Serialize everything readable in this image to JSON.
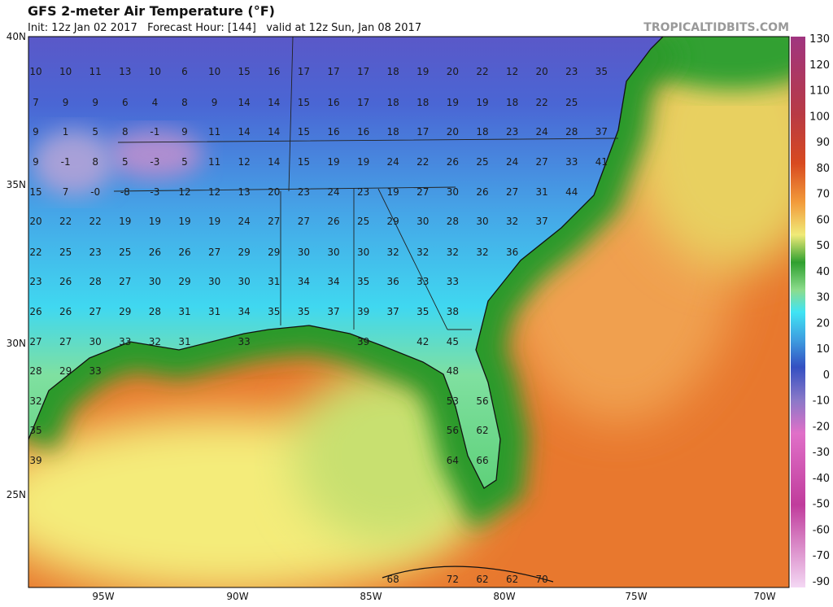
{
  "header": {
    "title": "GFS 2-meter Air Temperature (°F)",
    "subtitle": "Init: 12z Jan 02 2017   Forecast Hour: [144]   valid at 12z Sun, Jan 08 2017",
    "brand": "TROPICALTIDBITS.COM"
  },
  "latitudes": [
    "40N",
    "35N",
    "30N",
    "25N"
  ],
  "longitudes": [
    "95W",
    "90W",
    "85W",
    "80W",
    "75W",
    "70W"
  ],
  "colorbar": [
    "130",
    "120",
    "110",
    "100",
    "90",
    "80",
    "70",
    "60",
    "50",
    "40",
    "30",
    "20",
    "10",
    "0",
    "-10",
    "-20",
    "-30",
    "-40",
    "-50",
    "-60",
    "-70",
    "-90"
  ],
  "stations": [
    [
      "10",
      "10",
      "11",
      "13",
      "10",
      "6",
      "10",
      "15",
      "16",
      "17",
      "17",
      "17",
      "18",
      "19",
      "20",
      "22",
      "12",
      "20",
      "23",
      "35"
    ],
    [
      "7",
      "9",
      "9",
      "6",
      "4",
      "8",
      "9",
      "14",
      "14",
      "15",
      "16",
      "17",
      "18",
      "18",
      "19",
      "19",
      "18",
      "22",
      "25",
      null
    ],
    [
      "9",
      "1",
      "5",
      "8",
      "-1",
      "9",
      "11",
      "14",
      "14",
      "15",
      "16",
      "16",
      "18",
      "17",
      "20",
      "18",
      "23",
      "24",
      "28",
      "37"
    ],
    [
      "9",
      "-1",
      "8",
      "5",
      "-3",
      "5",
      "11",
      "12",
      "14",
      "15",
      "19",
      "19",
      "24",
      "22",
      "26",
      "25",
      "24",
      "27",
      "33",
      "41"
    ],
    [
      "15",
      "7",
      "-0",
      "-8",
      "-3",
      "12",
      "12",
      "13",
      "20",
      "23",
      "24",
      "23",
      "19",
      "27",
      "30",
      "26",
      "27",
      "31",
      "44",
      null
    ],
    [
      "20",
      "22",
      "22",
      "19",
      "19",
      "19",
      "19",
      "24",
      "27",
      "27",
      "26",
      "25",
      "29",
      "30",
      "28",
      "30",
      "32",
      "37",
      null,
      null
    ],
    [
      "22",
      "25",
      "23",
      "25",
      "26",
      "26",
      "27",
      "29",
      "29",
      "30",
      "30",
      "30",
      "32",
      "32",
      "32",
      "32",
      "36",
      null,
      null,
      null
    ],
    [
      "23",
      "26",
      "28",
      "27",
      "30",
      "29",
      "30",
      "30",
      "31",
      "34",
      "34",
      "35",
      "36",
      "33",
      "33",
      null,
      null,
      null,
      null,
      null
    ],
    [
      "26",
      "26",
      "27",
      "29",
      "28",
      "31",
      "31",
      "34",
      "35",
      "35",
      "37",
      "39",
      "37",
      "35",
      "38",
      null,
      null,
      null,
      null,
      null
    ],
    [
      "27",
      "27",
      "30",
      "33",
      "32",
      "31",
      null,
      "33",
      null,
      null,
      null,
      "39",
      null,
      "42",
      "45",
      null,
      null,
      null,
      null,
      null
    ],
    [
      "28",
      "29",
      "33",
      null,
      null,
      null,
      null,
      null,
      null,
      null,
      null,
      null,
      null,
      null,
      "48",
      null,
      null,
      null,
      null,
      null
    ],
    [
      "32",
      null,
      null,
      null,
      null,
      null,
      null,
      null,
      null,
      null,
      null,
      null,
      null,
      null,
      "53",
      "56",
      null,
      null,
      null,
      null
    ],
    [
      "35",
      null,
      null,
      null,
      null,
      null,
      null,
      null,
      null,
      null,
      null,
      null,
      null,
      null,
      "56",
      "62",
      null,
      null,
      null,
      null
    ],
    [
      "39",
      null,
      null,
      null,
      null,
      null,
      null,
      null,
      null,
      null,
      null,
      null,
      null,
      null,
      "64",
      "66",
      null,
      null,
      null,
      null
    ],
    [
      null,
      null,
      null,
      null,
      null,
      null,
      null,
      null,
      null,
      null,
      null,
      null,
      "68",
      null,
      "72",
      "62",
      "62",
      "70",
      null,
      null
    ]
  ]
}
